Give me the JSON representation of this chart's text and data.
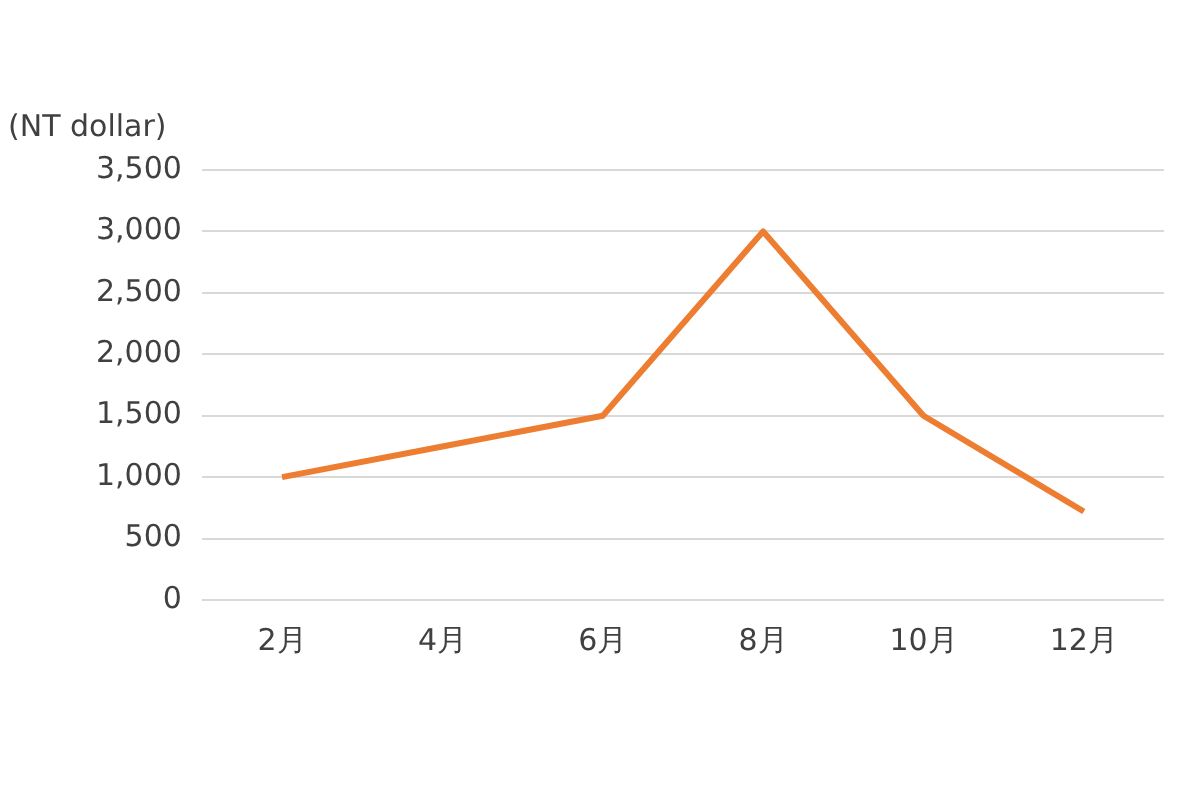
{
  "chart_data": {
    "type": "line",
    "ylabel": "(NT dollar)",
    "categories": [
      "2月",
      "4月",
      "6月",
      "8月",
      "10月",
      "12月"
    ],
    "series": [
      {
        "color": "#ed7d31",
        "values": [
          1000,
          1250,
          1500,
          3000,
          1500,
          720
        ]
      }
    ],
    "ylim": [
      0,
      3500
    ],
    "yticks": [
      0,
      500,
      {
        "value": 1000,
        "label": "1,000"
      },
      {
        "value": 1500,
        "label": "1,500"
      },
      {
        "value": 2000,
        "label": "2,000"
      },
      {
        "value": 2500,
        "label": "2,500"
      },
      {
        "value": 3000,
        "label": "3,000"
      },
      {
        "value": 3500,
        "label": "3,500"
      }
    ],
    "grid": "y",
    "legend": false,
    "marker": "none",
    "line_style": "solid"
  }
}
